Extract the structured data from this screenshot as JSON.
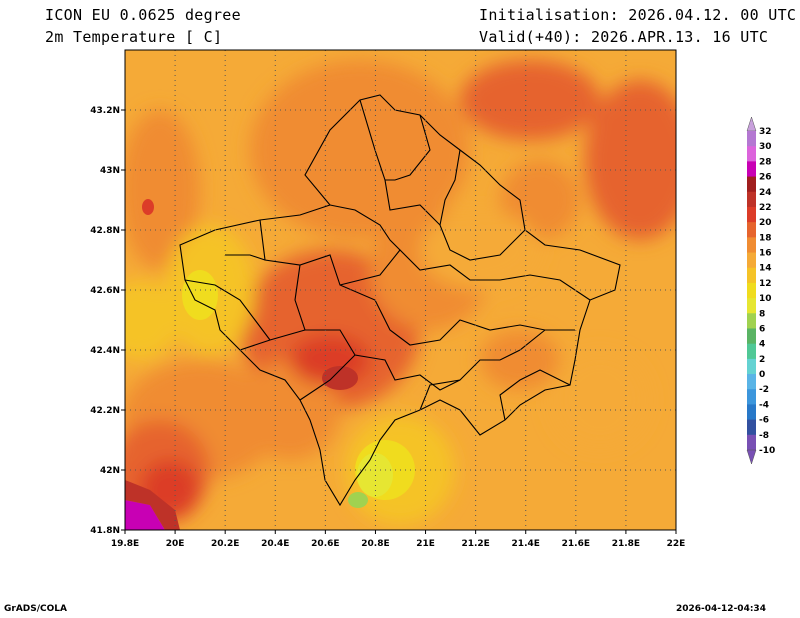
{
  "header": {
    "model_line": "ICON EU 0.0625 degree",
    "variable_line": "2m Temperature [ C]",
    "init_line": "Initialisation: 2026.04.12. 00 UTC",
    "valid_line": "Valid(+40): 2026.APR.13. 16 UTC"
  },
  "footer": {
    "left": "GrADS/COLA",
    "right": "2026-04-12-04:34"
  },
  "map": {
    "lon_ticks": [
      "19.8E",
      "20E",
      "20.2E",
      "20.4E",
      "20.6E",
      "20.8E",
      "21E",
      "21.2E",
      "21.4E",
      "21.6E",
      "21.8E",
      "22E"
    ],
    "lat_ticks": [
      "43.2N",
      "43N",
      "42.8N",
      "42.6N",
      "42.4N",
      "42.2N",
      "42N",
      "41.8N"
    ],
    "lon_range": [
      19.8,
      22.0
    ],
    "lat_range": [
      41.8,
      43.4
    ]
  },
  "colorbar": {
    "labels": [
      "32",
      "30",
      "28",
      "26",
      "24",
      "22",
      "20",
      "18",
      "16",
      "14",
      "12",
      "10",
      "8",
      "6",
      "4",
      "2",
      "0",
      "-2",
      "-4",
      "-6",
      "-8",
      "-10"
    ],
    "colors": [
      "#c8a0dc",
      "#b478d2",
      "#dc64dc",
      "#c800b4",
      "#a01e1e",
      "#be3228",
      "#dc3c28",
      "#e6642d",
      "#f08c32",
      "#f5aa37",
      "#f5c328",
      "#f0dc1e",
      "#e6e632",
      "#a0d250",
      "#5ab464",
      "#50c896",
      "#64d2d2",
      "#5ab4e6",
      "#3c96dc",
      "#2878c8",
      "#3250a0",
      "#7850b4"
    ]
  }
}
